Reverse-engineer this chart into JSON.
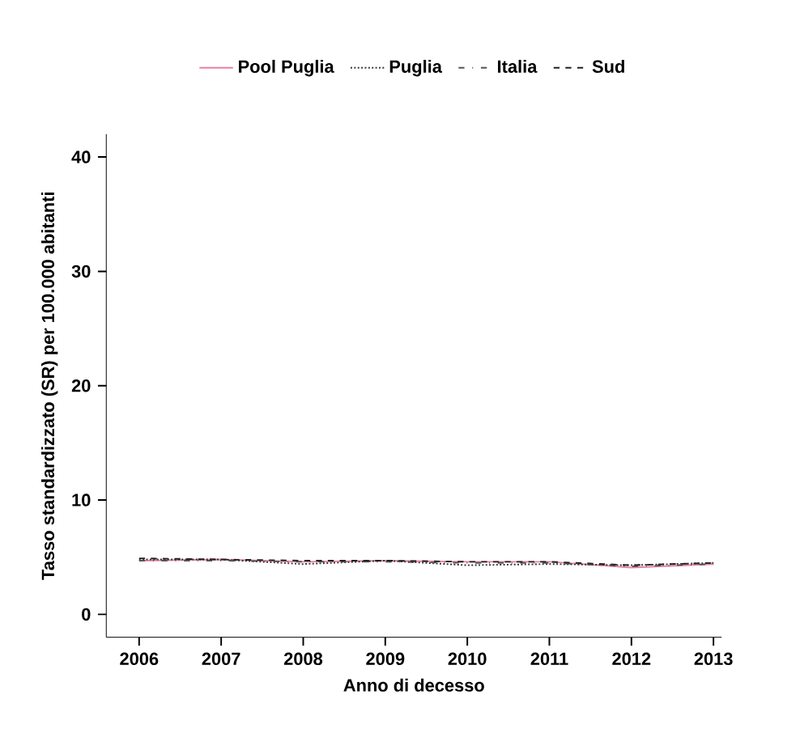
{
  "chart_data": {
    "type": "line",
    "xlabel": "Anno di decesso",
    "ylabel": "Tasso standardizzato (SR) per 100.000 abitanti",
    "x": [
      2006,
      2007,
      2008,
      2009,
      2010,
      2011,
      2012,
      2013
    ],
    "series": [
      {
        "name": "Pool Puglia",
        "color": "#e87fa8",
        "line_style": "solid",
        "values": [
          4.7,
          4.8,
          4.6,
          4.7,
          4.6,
          4.6,
          4.1,
          4.4
        ]
      },
      {
        "name": "Puglia",
        "color": "#333333",
        "line_style": "dotted",
        "values": [
          4.8,
          4.8,
          4.4,
          4.7,
          4.3,
          4.4,
          4.3,
          4.5
        ]
      },
      {
        "name": "Italia",
        "color": "#555555",
        "line_style": "dashdotted",
        "values": [
          4.7,
          4.7,
          4.6,
          4.6,
          4.5,
          4.5,
          4.2,
          4.4
        ]
      },
      {
        "name": "Sud",
        "color": "#222222",
        "line_style": "dashed",
        "values": [
          4.9,
          4.8,
          4.7,
          4.7,
          4.6,
          4.6,
          4.3,
          4.5
        ]
      }
    ],
    "xlim": [
      2005.6,
      2013.1
    ],
    "ylim": [
      -2,
      42
    ],
    "xticks": [
      2006,
      2007,
      2008,
      2009,
      2010,
      2011,
      2012,
      2013
    ],
    "yticks": [
      0,
      10,
      20,
      30,
      40
    ],
    "grid": false,
    "legend": "top",
    "marker": "none"
  }
}
